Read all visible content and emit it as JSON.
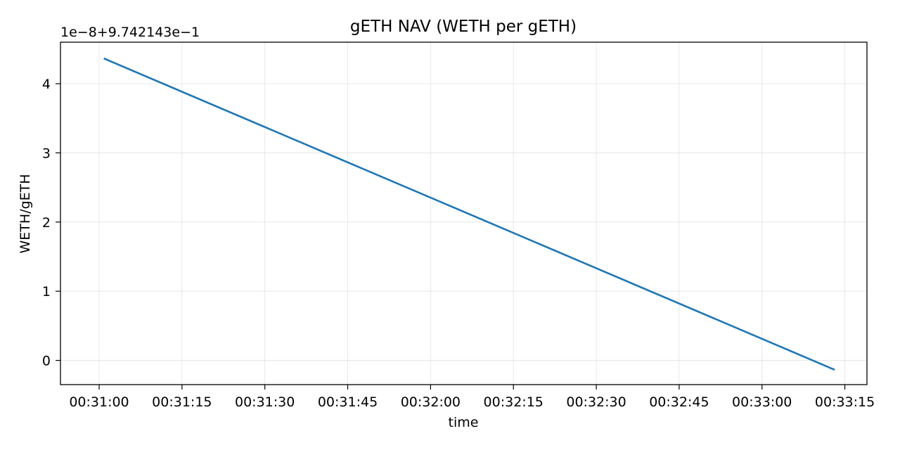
{
  "chart_data": {
    "type": "line",
    "title": "gETH NAV (WETH per gETH)",
    "xlabel": "time",
    "ylabel": "WETH/gETH",
    "y_offset_label": "1e−8+9.742143e−1",
    "x_ticks": [
      "00:31:00",
      "00:31:15",
      "00:31:30",
      "00:31:45",
      "00:32:00",
      "00:32:15",
      "00:32:30",
      "00:32:45",
      "00:33:00",
      "00:33:15"
    ],
    "y_ticks": [
      "0",
      "1",
      "2",
      "3",
      "4"
    ],
    "xlim": [
      "00:30:53",
      "00:33:19"
    ],
    "ylim": [
      -0.35,
      4.6
    ],
    "grid": true,
    "series": [
      {
        "color": "#1f77b4",
        "x": [
          "00:31:01",
          "00:33:13"
        ],
        "y": [
          4.36,
          -0.13
        ]
      }
    ]
  }
}
